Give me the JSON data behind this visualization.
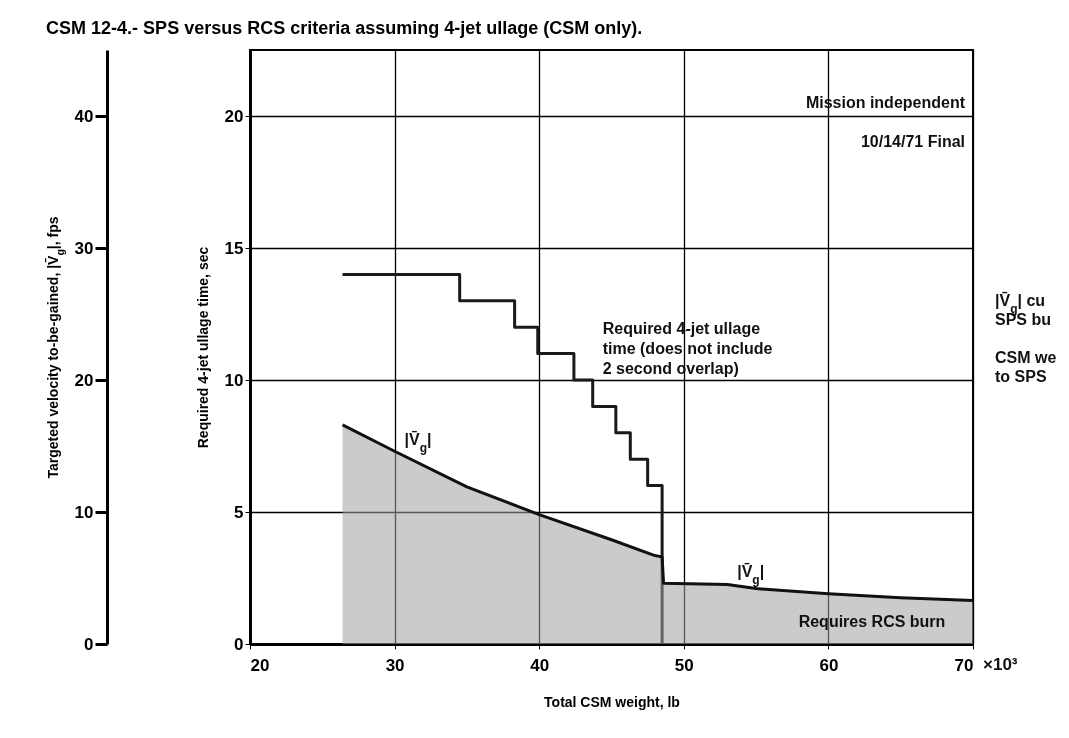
{
  "chart_data": {
    "type": "step",
    "title": "CSM 12-4.- SPS versus RCS criteria assuming 4-jet ullage (CSM only).",
    "xlabel": "Total CSM weight, lb",
    "ylabel": "Required 4-jet ullage time, sec",
    "y2label": "Targeted velocity to-be-gained, |V̄$_{g}$|, fps",
    "xlim": [
      20,
      70
    ],
    "xticks": [
      20,
      30,
      40,
      50,
      60,
      70
    ],
    "ylim": [
      0,
      22.5
    ],
    "yticks": [
      0,
      5,
      10,
      15,
      20
    ],
    "y2lim": [
      0,
      45
    ],
    "y2ticks": [
      0,
      10,
      20,
      30,
      40
    ],
    "grid": true,
    "series": [
      {
        "color": "#1a1a1a",
        "x": [
          26.4,
          34.5,
          38.3,
          39.9,
          42.4,
          43.7,
          45.3,
          46.3,
          47.5,
          48.5
        ],
        "values": [
          14,
          13,
          12,
          11,
          10,
          9,
          8,
          7,
          6,
          0
        ]
      },
      {
        "type": "area",
        "axis": "y2",
        "color": "#a0a0a0",
        "x": [
          26.4,
          30,
          35,
          40,
          45,
          48,
          48.5,
          48.6,
          53,
          55,
          60,
          65,
          70
        ],
        "values": [
          16.6,
          14.6,
          11.9,
          9.8,
          7.9,
          6.7,
          6.6,
          4.6,
          4.5,
          4.2,
          3.8,
          3.5,
          3.3
        ]
      }
    ],
    "annotations": [
      "Mission independent",
      "10/14/71   Final",
      "Requires RCS burn",
      "|V̄$_{g}$| cu",
      "SPS bu",
      "CSM we",
      "to SPS",
      "×10³",
      {
        "text": "Required 4-jet ullage time (does not include 2 second overlap)",
        "x": 43.7,
        "y": 10
      },
      {
        "text": "|V̄$_{g}$|",
        "x": 30,
        "y": 7.3
      },
      {
        "text": "|V̄$_{g}$|",
        "x": 53,
        "y": 2.3
      }
    ]
  }
}
